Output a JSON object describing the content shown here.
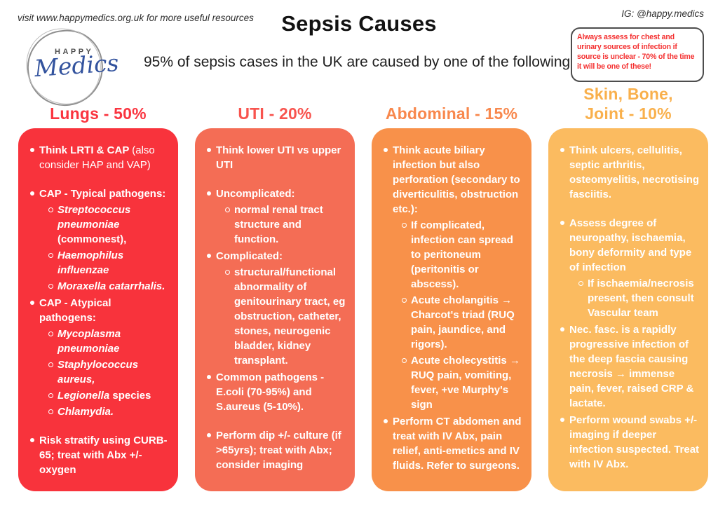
{
  "header": {
    "top_left_note": "visit www.happymedics.org.uk for more useful resources",
    "title": "Sepsis Causes",
    "subtitle": "95% of sepsis cases in the UK are caused by one of the following:",
    "top_right_note": "IG: @happy.medics",
    "alert_box": {
      "text": "Always assess for chest and urinary sources of infection if source is unclear - 70% of the time it will be one of these!",
      "text_color": "#f43030",
      "border_color": "#4d4d4d"
    }
  },
  "logo": {
    "word_top": "HAPPY",
    "word_script": "Medics"
  },
  "columns": [
    {
      "title_lines": [
        "Lungs - 50%"
      ],
      "title_color": "#fa3540",
      "card_color": "#f8333c",
      "items": [
        {
          "lvl": 1,
          "gap": false,
          "runs": [
            {
              "t": "Think LRTI & CAP ",
              "b": true
            },
            {
              "t": "(also consider HAP and VAP)"
            }
          ]
        },
        {
          "lvl": 1,
          "gap": true,
          "runs": [
            {
              "t": "CAP - Typical pathogens:",
              "b": true
            }
          ]
        },
        {
          "lvl": 2,
          "gap": false,
          "runs": [
            {
              "t": "Streptococcus pneumoniae ",
              "b": true,
              "i": true
            },
            {
              "t": "(commonest),",
              "b": true
            }
          ]
        },
        {
          "lvl": 2,
          "gap": false,
          "runs": [
            {
              "t": "Haemophilus influenzae",
              "b": true,
              "i": true
            }
          ]
        },
        {
          "lvl": 2,
          "gap": false,
          "runs": [
            {
              "t": "Moraxella catarrhalis.",
              "b": true,
              "i": true
            }
          ]
        },
        {
          "lvl": 1,
          "gap": false,
          "runs": [
            {
              "t": "CAP - Atypical pathogens:",
              "b": true
            }
          ]
        },
        {
          "lvl": 2,
          "gap": false,
          "runs": [
            {
              "t": "Mycoplasma pneumoniae",
              "b": true,
              "i": true
            }
          ]
        },
        {
          "lvl": 2,
          "gap": false,
          "runs": [
            {
              "t": "Staphylococcus aureus,",
              "b": true,
              "i": true
            }
          ]
        },
        {
          "lvl": 2,
          "gap": false,
          "runs": [
            {
              "t": "Legionella ",
              "b": true,
              "i": true
            },
            {
              "t": "species",
              "b": true
            }
          ]
        },
        {
          "lvl": 2,
          "gap": false,
          "runs": [
            {
              "t": "Chlamydia.",
              "b": true,
              "i": true
            }
          ]
        },
        {
          "lvl": 1,
          "gap": true,
          "runs": [
            {
              "t": "Risk stratify using CURB-65; treat with Abx +/- oxygen",
              "b": true
            }
          ]
        }
      ]
    },
    {
      "title_lines": [
        "UTI - 20%"
      ],
      "title_color": "#f8544e",
      "card_color": "#f46d55",
      "items": [
        {
          "lvl": 1,
          "gap": false,
          "runs": [
            {
              "t": "Think lower UTI vs upper UTI",
              "b": true
            }
          ]
        },
        {
          "lvl": 1,
          "gap": true,
          "runs": [
            {
              "t": "Uncomplicated:",
              "b": true
            }
          ]
        },
        {
          "lvl": 2,
          "gap": false,
          "runs": [
            {
              "t": "normal renal tract structure and function.",
              "b": true
            }
          ]
        },
        {
          "lvl": 1,
          "gap": false,
          "runs": [
            {
              "t": "Complicated:",
              "b": true
            }
          ]
        },
        {
          "lvl": 2,
          "gap": false,
          "runs": [
            {
              "t": "structural/functional abnormality of genitourinary tract, eg obstruction, catheter, stones, neurogenic bladder, kidney transplant.",
              "b": true
            }
          ]
        },
        {
          "lvl": 1,
          "gap": false,
          "runs": [
            {
              "t": "Common pathogens - E.coli (70-95%) and S.aureus (5-10%).",
              "b": true
            }
          ]
        },
        {
          "lvl": 1,
          "gap": true,
          "runs": [
            {
              "t": "Perform dip +/- culture (if >65yrs); treat with Abx; consider imaging",
              "b": true
            }
          ]
        }
      ]
    },
    {
      "title_lines": [
        "Abdominal - 15%"
      ],
      "title_color": "#f8884d",
      "card_color": "#f8914a",
      "items": [
        {
          "lvl": 1,
          "gap": false,
          "runs": [
            {
              "t": "Think acute biliary infection but also perforation (secondary to diverticulitis, obstruction etc.):",
              "b": true
            }
          ]
        },
        {
          "lvl": 2,
          "gap": false,
          "runs": [
            {
              "t": "If complicated, infection can spread to peritoneum (peritonitis or abscess).",
              "b": true
            }
          ]
        },
        {
          "lvl": 2,
          "gap": false,
          "runs": [
            {
              "t": "Acute cholangitis → Charcot's triad (RUQ pain, jaundice, and rigors).",
              "b": true
            }
          ]
        },
        {
          "lvl": 2,
          "gap": false,
          "runs": [
            {
              "t": "Acute cholecystitis → RUQ pain, vomiting, fever, +ve Murphy's sign",
              "b": true
            }
          ]
        },
        {
          "lvl": 1,
          "gap": false,
          "runs": [
            {
              "t": "Perform CT abdomen and treat with IV Abx, pain relief, anti-emetics and IV fluids. Refer to surgeons.",
              "b": true
            }
          ]
        }
      ]
    },
    {
      "title_lines": [
        "Skin, Bone,",
        "Joint - 10%"
      ],
      "title_color": "#f9b04c",
      "card_color": "#fbbb60",
      "items": [
        {
          "lvl": 1,
          "gap": false,
          "runs": [
            {
              "t": "Think ulcers, cellulitis, septic arthritis, osteomyelitis, necrotising fasciitis.",
              "b": true
            }
          ]
        },
        {
          "lvl": 1,
          "gap": true,
          "runs": [
            {
              "t": "Assess degree of neuropathy, ischaemia, bony deformity and type of infection",
              "b": true
            }
          ]
        },
        {
          "lvl": 2,
          "gap": false,
          "runs": [
            {
              "t": "If ischaemia/necrosis present, then consult Vascular team",
              "b": true
            }
          ]
        },
        {
          "lvl": 1,
          "gap": false,
          "runs": [
            {
              "t": "Nec. fasc. is a rapidly progressive infection of the deep fascia causing necrosis → immense pain, fever, raised CRP & lactate.",
              "b": true
            }
          ]
        },
        {
          "lvl": 1,
          "gap": false,
          "runs": [
            {
              "t": "Perform wound swabs +/- imaging if deeper infection suspected. Treat with IV Abx.",
              "b": true
            }
          ]
        }
      ]
    }
  ]
}
